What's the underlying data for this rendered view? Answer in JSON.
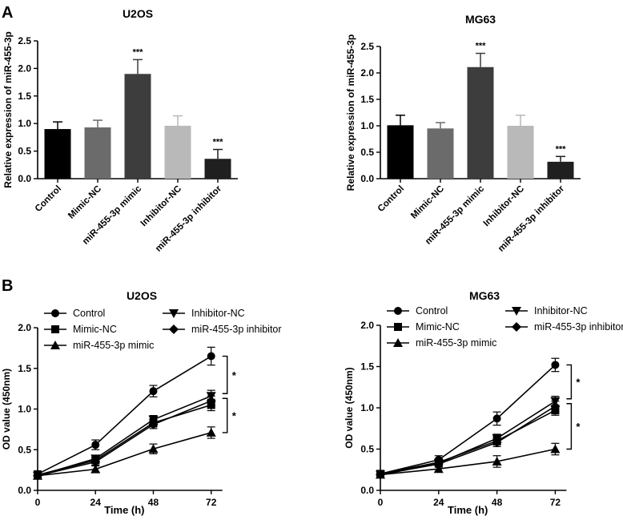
{
  "panel_labels": [
    "A",
    "B"
  ],
  "chart_data": [
    {
      "type": "bar",
      "title": "U2OS",
      "xlabel": "",
      "ylabel": "Relative expression of miR-455-3p",
      "ylim": [
        0,
        2.5
      ],
      "yticks": [
        "0.0",
        "0.5",
        "1.0",
        "1.5",
        "2.0",
        "2.5"
      ],
      "categories": [
        "Control",
        "Mimic-NC",
        "miR-455-3p mimic",
        "Inhibitor-NC",
        "miR-455-3p inhibitor"
      ],
      "values": [
        0.9,
        0.93,
        1.9,
        0.96,
        0.36
      ],
      "errors": [
        0.13,
        0.13,
        0.26,
        0.18,
        0.17
      ],
      "annotations": [
        "",
        "",
        "***",
        "",
        "***"
      ],
      "colors": [
        "#000000",
        "#6b6b6b",
        "#3d3d3d",
        "#b9b9b9",
        "#1f1f1f"
      ]
    },
    {
      "type": "bar",
      "title": "MG63",
      "xlabel": "",
      "ylabel": "Relative expression of miR-455-3p",
      "ylim": [
        0,
        2.5
      ],
      "yticks": [
        "0.0",
        "0.5",
        "1.0",
        "1.5",
        "2.0",
        "2.5"
      ],
      "categories": [
        "Control",
        "Mimic-NC",
        "miR-455-3p mimic",
        "Inhibitor-NC",
        "miR-455-3p inhibitor"
      ],
      "values": [
        1.01,
        0.95,
        2.11,
        1.0,
        0.32
      ],
      "errors": [
        0.19,
        0.11,
        0.26,
        0.2,
        0.1
      ],
      "annotations": [
        "",
        "",
        "***",
        "",
        "***"
      ],
      "colors": [
        "#000000",
        "#6b6b6b",
        "#3d3d3d",
        "#b9b9b9",
        "#1f1f1f"
      ]
    },
    {
      "type": "line",
      "title": "U2OS",
      "xlabel": "Time (h)",
      "ylabel": "OD value (450nm)",
      "x": [
        0,
        24,
        48,
        72
      ],
      "xticks": [
        "0",
        "24",
        "48",
        "72"
      ],
      "ylim": [
        0,
        2.0
      ],
      "yticks": [
        "0.0",
        "0.5",
        "1.0",
        "1.5",
        "2.0"
      ],
      "series": [
        {
          "name": "Control",
          "marker": "circle",
          "values": [
            0.2,
            0.56,
            1.22,
            1.65
          ],
          "errors": [
            0.04,
            0.06,
            0.07,
            0.11
          ]
        },
        {
          "name": "Mimic-NC",
          "marker": "square",
          "values": [
            0.19,
            0.37,
            0.83,
            1.05
          ],
          "errors": [
            0.03,
            0.04,
            0.05,
            0.07
          ]
        },
        {
          "name": "miR-455-3p mimic",
          "marker": "triangle-up",
          "values": [
            0.18,
            0.26,
            0.51,
            0.71
          ],
          "errors": [
            0.03,
            0.04,
            0.06,
            0.07
          ]
        },
        {
          "name": "Inhibitor-NC",
          "marker": "triangle-down",
          "values": [
            0.18,
            0.39,
            0.87,
            1.16
          ],
          "errors": [
            0.03,
            0.04,
            0.05,
            0.07
          ]
        },
        {
          "name": "miR-455-3p inhibitor",
          "marker": "diamond",
          "values": [
            0.18,
            0.35,
            0.81,
            1.1
          ],
          "errors": [
            0.03,
            0.04,
            0.05,
            0.06
          ]
        }
      ],
      "annotations": [
        "*",
        "*"
      ]
    },
    {
      "type": "line",
      "title": "MG63",
      "xlabel": "Time (h)",
      "ylabel": "OD value (450nm)",
      "x": [
        0,
        24,
        48,
        72
      ],
      "xticks": [
        "0",
        "24",
        "48",
        "72"
      ],
      "ylim": [
        0,
        2.0
      ],
      "yticks": [
        "0.0",
        "0.5",
        "1.0",
        "1.5",
        "2.0"
      ],
      "series": [
        {
          "name": "Control",
          "marker": "circle",
          "values": [
            0.2,
            0.37,
            0.87,
            1.52
          ],
          "errors": [
            0.04,
            0.05,
            0.08,
            0.08
          ]
        },
        {
          "name": "Mimic-NC",
          "marker": "square",
          "values": [
            0.2,
            0.34,
            0.6,
            0.97
          ],
          "errors": [
            0.03,
            0.04,
            0.05,
            0.06
          ]
        },
        {
          "name": "miR-455-3p mimic",
          "marker": "triangle-up",
          "values": [
            0.19,
            0.26,
            0.35,
            0.5
          ],
          "errors": [
            0.03,
            0.04,
            0.07,
            0.07
          ]
        },
        {
          "name": "Inhibitor-NC",
          "marker": "triangle-down",
          "values": [
            0.19,
            0.33,
            0.63,
            1.08
          ],
          "errors": [
            0.03,
            0.04,
            0.05,
            0.06
          ]
        },
        {
          "name": "miR-455-3p inhibitor",
          "marker": "diamond",
          "values": [
            0.19,
            0.32,
            0.58,
            1.02
          ],
          "errors": [
            0.03,
            0.04,
            0.05,
            0.06
          ]
        }
      ],
      "annotations": [
        "*",
        "*"
      ]
    }
  ]
}
